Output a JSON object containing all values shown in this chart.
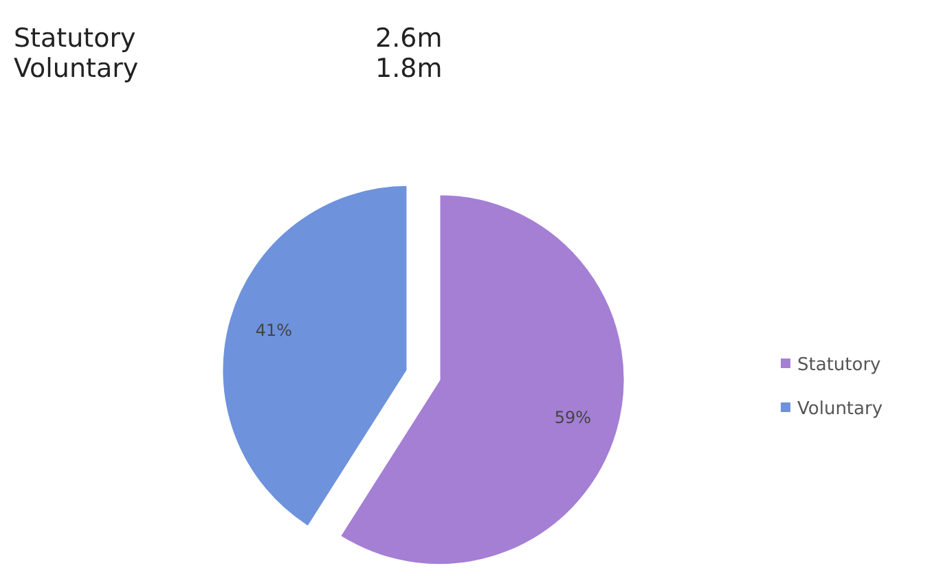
{
  "chart_data": {
    "type": "pie",
    "categories": [
      "Statutory",
      "Voluntary"
    ],
    "values": [
      59,
      41
    ],
    "colors": [
      "#a47fd4",
      "#6e92dc"
    ],
    "value_labels": [
      "59%",
      "41%"
    ],
    "legend": "right",
    "annotations": [
      "Statutory",
      "2.6m",
      "Voluntary",
      "1.8m"
    ]
  }
}
